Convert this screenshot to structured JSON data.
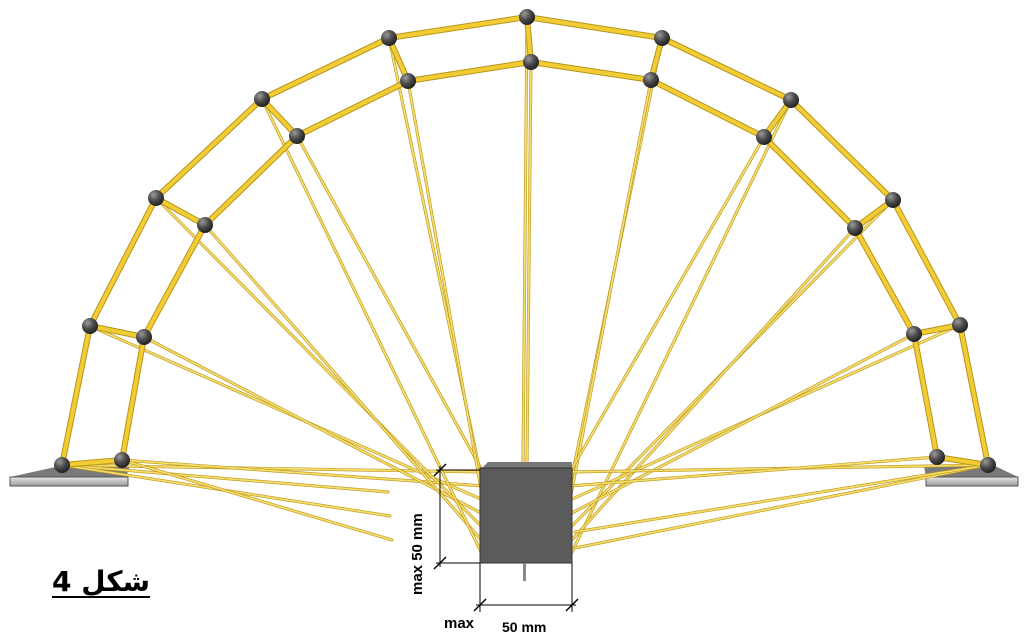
{
  "figure": {
    "caption": "شكل 4",
    "dim_vertical": "max 50 mm",
    "dim_horizontal_max": "max",
    "dim_horizontal_value": "50 mm"
  },
  "colors": {
    "strut": "#f2cc35",
    "strut_edge": "#b8951a",
    "wire": "#f6dc6a",
    "node": "#4a4a4a",
    "block": "#5a5a5a",
    "base": "#c8c8c8"
  }
}
